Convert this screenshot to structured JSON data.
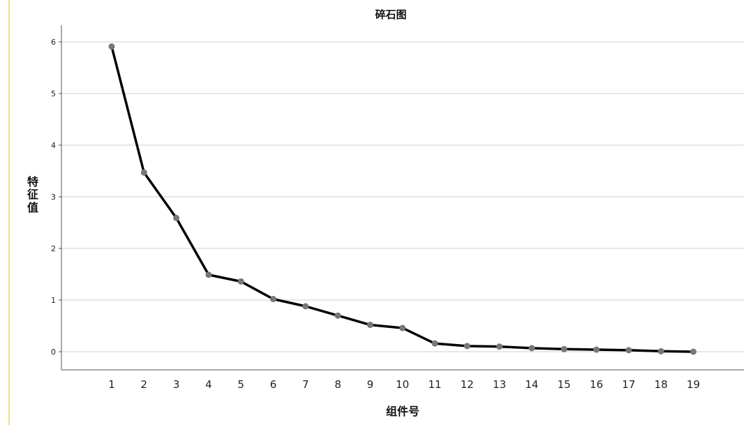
{
  "chart_data": {
    "type": "line",
    "title": "碎石图",
    "xlabel": "组件号",
    "ylabel": "特征值",
    "categories": [
      "1",
      "2",
      "3",
      "4",
      "5",
      "6",
      "7",
      "8",
      "9",
      "10",
      "11",
      "12",
      "13",
      "14",
      "15",
      "16",
      "17",
      "18",
      "19"
    ],
    "series": [
      {
        "values": [
          5.91,
          3.47,
          2.59,
          1.49,
          1.36,
          1.02,
          0.88,
          0.7,
          0.52,
          0.46,
          0.16,
          0.11,
          0.1,
          0.07,
          0.05,
          0.04,
          0.03,
          0.01,
          0.0
        ]
      }
    ],
    "yticks": [
      "0",
      "1",
      "2",
      "3",
      "4",
      "5",
      "6"
    ],
    "ylim": [
      -0.35,
      6.3
    ],
    "grid": true,
    "colors": {
      "line": "#000000",
      "marker": "#777777",
      "grid": "#cfcfcf",
      "axis": "#555555",
      "accent_rule": "#f3df7a"
    }
  }
}
